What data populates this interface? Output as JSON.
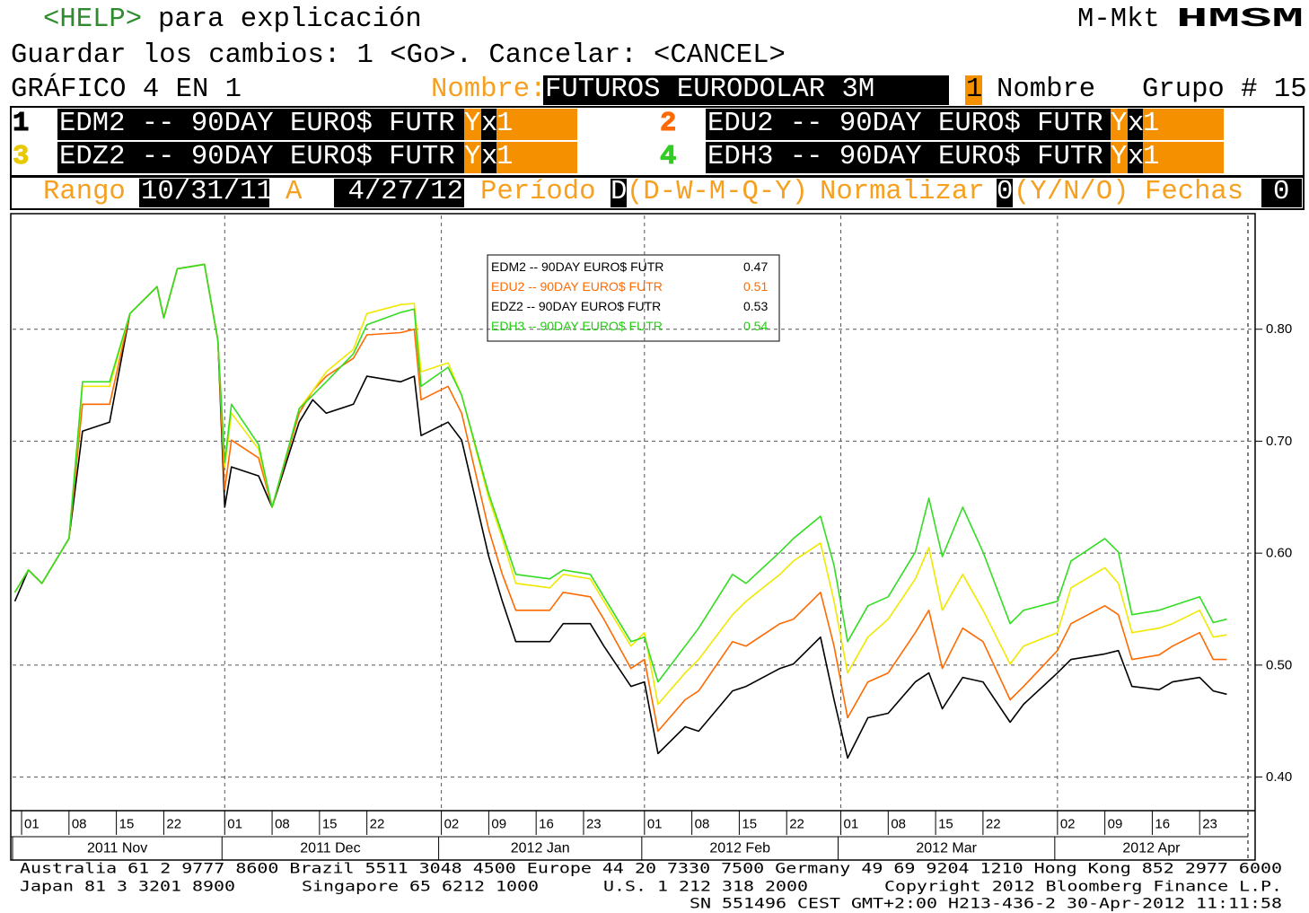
{
  "header": {
    "help_key": "<HELP>",
    "help_text": "para explicación",
    "function": "M-Mkt",
    "code": "HMSM",
    "save_line": "Guardar los cambios: 1 <Go>. Cancelar: <CANCEL>",
    "chart_title": "GRÁFICO 4 EN 1",
    "name_label": "Nombre:",
    "name_value": "FUTUROS EURODOLAR 3M",
    "name_number": 1,
    "name_word": "Nombre",
    "group": "Grupo # 15"
  },
  "securities": [
    {
      "number": 1,
      "color": "#000000",
      "ticker": "EDM2 -- 90DAY EURO$ FUTR",
      "y_flag": "Y",
      "x_flag": "x",
      "multiplier": 1
    },
    {
      "number": 2,
      "color": "#ff6a00",
      "ticker": "EDU2 -- 90DAY EURO$ FUTR",
      "y_flag": "Y",
      "x_flag": "x",
      "multiplier": 1
    },
    {
      "number": 3,
      "color": "#e8c800",
      "ticker": "EDZ2 -- 90DAY EURO$ FUTR",
      "y_flag": "Y",
      "x_flag": "x",
      "multiplier": 1
    },
    {
      "number": 4,
      "color": "#33cc22",
      "ticker": "EDH3 -- 90DAY EURO$ FUTR",
      "y_flag": "Y",
      "x_flag": "x",
      "multiplier": 1
    }
  ],
  "settings": {
    "range_label": "Rango",
    "start": "10/31/11",
    "to": "A",
    "end": "4/27/12",
    "period_label": "Período",
    "period": "D",
    "period_options": "(D-W-M-Q-Y)",
    "normalize_label": "Normalizar",
    "normalize": 0,
    "normalize_options": "(Y/N/O)",
    "dates_label": "Fechas",
    "dates": 0
  },
  "chart_data": {
    "type": "line",
    "x": [
      "2011-10-31",
      "2011-11-02",
      "2011-11-04",
      "2011-11-08",
      "2011-11-10",
      "2011-11-14",
      "2011-11-17",
      "2011-11-21",
      "2011-11-22",
      "2011-11-24",
      "2011-11-28",
      "2011-11-30",
      "2011-12-01",
      "2011-12-02",
      "2011-12-06",
      "2011-12-08",
      "2011-12-12",
      "2011-12-14",
      "2011-12-16",
      "2011-12-20",
      "2011-12-22",
      "2011-12-27",
      "2011-12-29",
      "2011-12-30",
      "2012-01-03",
      "2012-01-05",
      "2012-01-09",
      "2012-01-11",
      "2012-01-13",
      "2012-01-18",
      "2012-01-20",
      "2012-01-24",
      "2012-01-26",
      "2012-01-30",
      "2012-02-01",
      "2012-02-03",
      "2012-02-07",
      "2012-02-09",
      "2012-02-14",
      "2012-02-16",
      "2012-02-21",
      "2012-02-23",
      "2012-02-27",
      "2012-02-29",
      "2012-03-02",
      "2012-03-05",
      "2012-03-08",
      "2012-03-12",
      "2012-03-14",
      "2012-03-16",
      "2012-03-19",
      "2012-03-22",
      "2012-03-26",
      "2012-03-28",
      "2012-04-02",
      "2012-04-04",
      "2012-04-09",
      "2012-04-11",
      "2012-04-13",
      "2012-04-17",
      "2012-04-19",
      "2012-04-23",
      "2012-04-25",
      "2012-04-27"
    ],
    "series": [
      {
        "name": "EDM2 -- 90DAY EURO$ FUTR",
        "color": "#000000",
        "label_color": "#000000",
        "last_value": 0.47,
        "values": [
          0.557,
          0.585,
          0.573,
          0.613,
          0.709,
          0.717,
          0.814,
          0.838,
          0.81,
          0.854,
          0.858,
          0.79,
          0.641,
          0.677,
          0.669,
          0.641,
          0.717,
          0.737,
          0.725,
          0.733,
          0.758,
          0.753,
          0.758,
          0.705,
          0.717,
          0.701,
          0.597,
          0.557,
          0.521,
          0.521,
          0.537,
          0.537,
          0.517,
          0.481,
          0.485,
          0.421,
          0.445,
          0.441,
          0.477,
          0.481,
          0.497,
          0.501,
          0.525,
          0.469,
          0.417,
          0.453,
          0.457,
          0.485,
          0.493,
          0.461,
          0.489,
          0.485,
          0.449,
          0.465,
          0.493,
          0.505,
          0.51,
          0.513,
          0.481,
          0.478,
          0.485,
          0.489,
          0.477,
          0.474
        ]
      },
      {
        "name": "EDU2 -- 90DAY EURO$ FUTR",
        "color": "#ff6a00",
        "label_color": "#ff6a00",
        "last_value": 0.51,
        "values": [
          0.565,
          0.585,
          0.573,
          0.613,
          0.733,
          0.733,
          0.814,
          0.838,
          0.81,
          0.854,
          0.858,
          0.79,
          0.657,
          0.701,
          0.685,
          0.641,
          0.725,
          0.745,
          0.758,
          0.774,
          0.795,
          0.797,
          0.8,
          0.737,
          0.749,
          0.725,
          0.621,
          0.581,
          0.549,
          0.549,
          0.565,
          0.561,
          0.541,
          0.497,
          0.505,
          0.441,
          0.469,
          0.477,
          0.521,
          0.517,
          0.537,
          0.541,
          0.565,
          0.517,
          0.453,
          0.485,
          0.493,
          0.529,
          0.549,
          0.497,
          0.533,
          0.521,
          0.469,
          0.481,
          0.513,
          0.537,
          0.553,
          0.545,
          0.505,
          0.509,
          0.517,
          0.529,
          0.505,
          0.505
        ]
      },
      {
        "name": "EDZ2 -- 90DAY EURO$ FUTR",
        "color": "#f0e800",
        "label_color": "#000000",
        "last_value": 0.53,
        "values": [
          0.565,
          0.585,
          0.573,
          0.613,
          0.749,
          0.749,
          0.814,
          0.838,
          0.81,
          0.854,
          0.858,
          0.79,
          0.677,
          0.725,
          0.693,
          0.641,
          0.729,
          0.745,
          0.762,
          0.782,
          0.814,
          0.822,
          0.823,
          0.762,
          0.77,
          0.741,
          0.649,
          0.613,
          0.573,
          0.569,
          0.581,
          0.577,
          0.557,
          0.517,
          0.529,
          0.465,
          0.493,
          0.505,
          0.545,
          0.557,
          0.581,
          0.593,
          0.609,
          0.557,
          0.493,
          0.525,
          0.541,
          0.577,
          0.605,
          0.549,
          0.581,
          0.549,
          0.501,
          0.517,
          0.529,
          0.569,
          0.587,
          0.573,
          0.529,
          0.533,
          0.537,
          0.549,
          0.525,
          0.527
        ]
      },
      {
        "name": "EDH3 -- 90DAY EURO$ FUTR",
        "color": "#33dd22",
        "label_color": "#22cc11",
        "last_value": 0.54,
        "values": [
          0.565,
          0.585,
          0.573,
          0.613,
          0.753,
          0.753,
          0.814,
          0.838,
          0.81,
          0.854,
          0.858,
          0.79,
          0.681,
          0.733,
          0.697,
          0.641,
          0.729,
          0.741,
          0.753,
          0.778,
          0.804,
          0.815,
          0.818,
          0.749,
          0.766,
          0.741,
          0.653,
          0.617,
          0.581,
          0.577,
          0.585,
          0.581,
          0.561,
          0.521,
          0.525,
          0.485,
          0.517,
          0.533,
          0.581,
          0.573,
          0.601,
          0.613,
          0.633,
          0.589,
          0.521,
          0.553,
          0.561,
          0.601,
          0.649,
          0.597,
          0.641,
          0.601,
          0.537,
          0.549,
          0.557,
          0.593,
          0.613,
          0.601,
          0.545,
          0.549,
          0.553,
          0.561,
          0.538,
          0.541
        ]
      }
    ],
    "xlim": [
      "2011-10-31",
      "2012-04-30"
    ],
    "xticks": [
      {
        "value": "2011-11-01",
        "label": "01"
      },
      {
        "value": "2011-11-08",
        "label": "08"
      },
      {
        "value": "2011-11-15",
        "label": "15"
      },
      {
        "value": "2011-11-22",
        "label": "22"
      },
      {
        "value": "2011-12-01",
        "label": "01"
      },
      {
        "value": "2011-12-08",
        "label": "08"
      },
      {
        "value": "2011-12-15",
        "label": "15"
      },
      {
        "value": "2011-12-22",
        "label": "22"
      },
      {
        "value": "2012-01-02",
        "label": "02"
      },
      {
        "value": "2012-01-09",
        "label": "09"
      },
      {
        "value": "2012-01-16",
        "label": "16"
      },
      {
        "value": "2012-01-23",
        "label": "23"
      },
      {
        "value": "2012-02-01",
        "label": "01"
      },
      {
        "value": "2012-02-08",
        "label": "08"
      },
      {
        "value": "2012-02-15",
        "label": "15"
      },
      {
        "value": "2012-02-22",
        "label": "22"
      },
      {
        "value": "2012-03-01",
        "label": "01"
      },
      {
        "value": "2012-03-08",
        "label": "08"
      },
      {
        "value": "2012-03-15",
        "label": "15"
      },
      {
        "value": "2012-03-22",
        "label": "22"
      },
      {
        "value": "2012-04-02",
        "label": "02"
      },
      {
        "value": "2012-04-09",
        "label": "09"
      },
      {
        "value": "2012-04-16",
        "label": "16"
      },
      {
        "value": "2012-04-23",
        "label": "23"
      }
    ],
    "months": [
      {
        "value": "2011-11",
        "label": "2011 Nov"
      },
      {
        "value": "2011-12",
        "label": "2011 Dec"
      },
      {
        "value": "2012-01",
        "label": "2012 Jan"
      },
      {
        "value": "2012-02",
        "label": "2012 Feb"
      },
      {
        "value": "2012-03",
        "label": "2012 Mar"
      },
      {
        "value": "2012-04",
        "label": "2012 Apr"
      }
    ],
    "ylim": [
      0.37,
      0.9
    ],
    "yticks": [
      {
        "value": 0.4,
        "label": "0.40"
      },
      {
        "value": 0.5,
        "label": "0.50"
      },
      {
        "value": 0.6,
        "label": "0.60"
      },
      {
        "value": 0.7,
        "label": "0.70"
      },
      {
        "value": 0.8,
        "label": "0.80"
      }
    ],
    "grid": true
  },
  "footer": {
    "line1": "Australia 61 2 9777 8600 Brazil 5511 3048 4500 Europe 44 20 7330 7500 Germany 49 69 9204 1210 Hong Kong 852 2977 6000",
    "japan": "Japan 81 3 3201 8900",
    "singapore": "Singapore 65 6212 1000",
    "us": "U.S. 1 212 318 2000",
    "copyright": "Copyright 2012 Bloomberg Finance L.P.",
    "session": "SN 551496 CEST GMT+2:00 H213-436-2 30-Apr-2012 11:11:58"
  }
}
